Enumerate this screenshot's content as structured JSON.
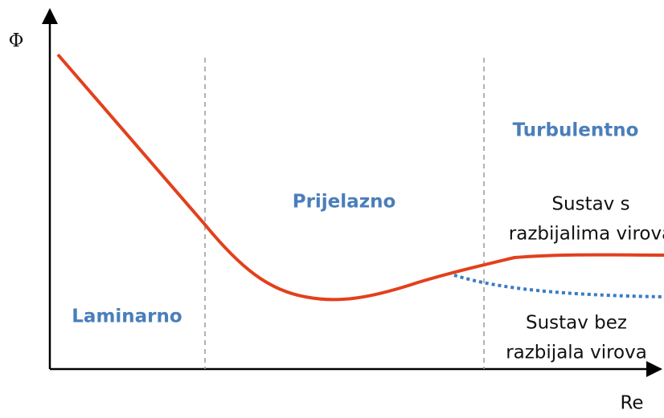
{
  "axes": {
    "y_label": "Φ",
    "x_label": "Re"
  },
  "regions": [
    "Laminarno",
    "Prijelazno",
    "Turbulentno"
  ],
  "curves": [
    {
      "lines": [
        "Sustav s",
        "razbijalima virova"
      ]
    },
    {
      "lines": [
        "Sustav bez",
        "razbijala virova"
      ]
    }
  ]
}
